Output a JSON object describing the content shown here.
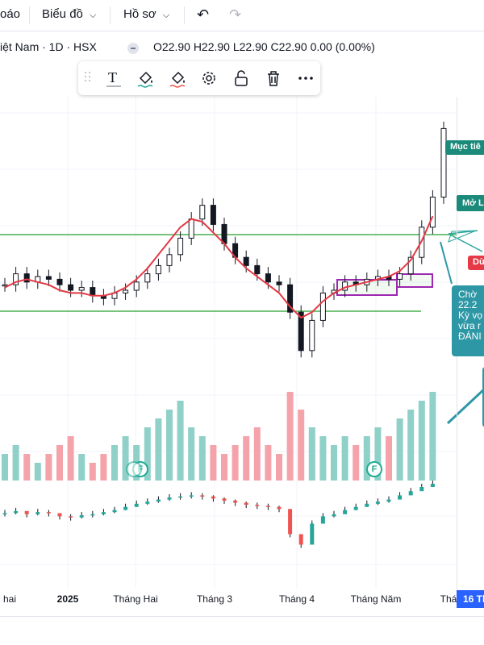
{
  "topbar": {
    "partial_item": "oáo",
    "chart_menu": "Biểu đồ",
    "profile_menu": "Hồ sơ",
    "undo_icon": "undo-icon",
    "redo_icon": "redo-icon"
  },
  "legend": {
    "symbol": "iệt Nam · 1D · HSX",
    "ohlc": "O22.90  H22.90  L22.90  C22.90  0.00 (0.00%)"
  },
  "drawing_toolbar": {
    "tools": [
      "drag-handle-icon",
      "text-icon",
      "fill-color-icon",
      "line-color-icon",
      "settings-icon",
      "lock-icon",
      "trash-icon",
      "more-icon"
    ]
  },
  "annotations": {
    "target": "Mục tiê",
    "open_long": "Mở L",
    "stop": "Dừ",
    "note_lines": [
      "Chờ",
      "22.2",
      "Kỳ vọ",
      "vừa r",
      "ĐÁNI"
    ]
  },
  "time_axis": {
    "ticks": [
      "hai",
      "2025",
      "Tháng Hai",
      "Tháng 3",
      "Tháng 4",
      "Tháng Năm",
      "Thá"
    ],
    "current_date": "16 Th"
  },
  "events": [
    "F",
    "F",
    "F"
  ],
  "colors": {
    "up": "#26a69a",
    "down": "#ef5350",
    "ma": "#e53945",
    "channel": "#4caf50",
    "box": "#9c27b0",
    "volume_up": "#8fd0c8",
    "volume_down": "#f5a3ab",
    "accent": "#2962ff"
  },
  "chart_data": {
    "type": "candlestick",
    "symbol_visible": "iệt Nam · 1D · HSX",
    "last": {
      "open": 22.9,
      "high": 22.9,
      "low": 22.9,
      "close": 22.9,
      "change": 0.0,
      "change_pct": 0.0
    },
    "series": [
      {
        "name": "price",
        "values_y": [
          17.2,
          17.6,
          17.3,
          17.5,
          17.4,
          17.2,
          17.0,
          17.1,
          16.8,
          16.7,
          16.9,
          17.0,
          17.3,
          17.6,
          17.9,
          18.3,
          18.9,
          19.6,
          20.1,
          19.4,
          18.7,
          18.2,
          17.9,
          17.6,
          17.3,
          17.2,
          16.2,
          14.8,
          15.9,
          16.9,
          17.0,
          17.3,
          17.2,
          17.4,
          17.5,
          17.4,
          17.6,
          18.2,
          19.3,
          20.4,
          22.9
        ]
      },
      {
        "name": "MA",
        "values_y": [
          17.1,
          17.3,
          17.4,
          17.3,
          17.2,
          17.0,
          16.9,
          16.9,
          16.8,
          16.8,
          16.9,
          17.1,
          17.4,
          17.8,
          18.3,
          18.8,
          19.3,
          19.6,
          19.5,
          19.1,
          18.7,
          18.2,
          17.8,
          17.5,
          17.2,
          16.9,
          16.4,
          16.0,
          16.2,
          16.6,
          16.9,
          17.1,
          17.2,
          17.3,
          17.4,
          17.5,
          17.7,
          18.1,
          18.8,
          19.7
        ]
      }
    ],
    "volume": [
      3,
      4,
      3,
      2,
      3,
      4,
      5,
      3,
      2,
      3,
      4,
      5,
      4,
      6,
      7,
      8,
      9,
      6,
      5,
      4,
      3,
      4,
      5,
      6,
      4,
      3,
      10,
      8,
      6,
      5,
      4,
      5,
      4,
      5,
      6,
      5,
      7,
      8,
      9,
      10
    ],
    "indicator": [
      -0.5,
      -0.3,
      -0.6,
      -0.4,
      -0.5,
      -0.8,
      -0.9,
      -0.7,
      -0.6,
      -0.4,
      -0.2,
      0.1,
      0.4,
      0.6,
      0.8,
      1.0,
      1.1,
      1.2,
      1.1,
      0.9,
      0.7,
      0.5,
      0.3,
      0.2,
      0.1,
      -0.1,
      -2.5,
      -3.5,
      -1.5,
      -0.8,
      -0.6,
      -0.2,
      0.1,
      0.4,
      0.6,
      0.8,
      1.2,
      1.6,
      2.0,
      2.3
    ]
  }
}
